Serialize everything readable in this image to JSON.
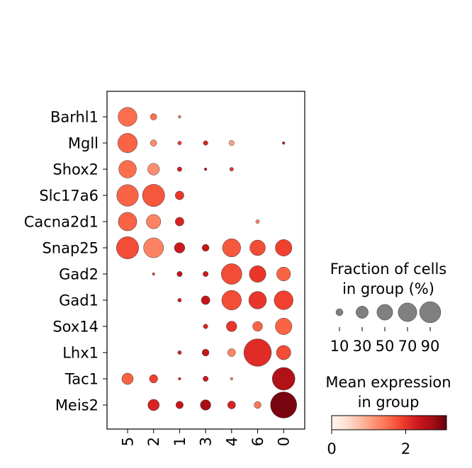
{
  "chart_data": {
    "type": "dotplot",
    "genes": [
      "Barhl1",
      "Mgll",
      "Shox2",
      "Slc17a6",
      "Cacna2d1",
      "Snap25",
      "Gad2",
      "Gad1",
      "Sox14",
      "Lhx1",
      "Tac1",
      "Meis2"
    ],
    "groups": [
      "5",
      "2",
      "1",
      "3",
      "4",
      "6",
      "0"
    ],
    "fraction_pct": [
      [
        52,
        6,
        1,
        0,
        0,
        0,
        0
      ],
      [
        55,
        6,
        2,
        3,
        4,
        0,
        1
      ],
      [
        45,
        20,
        3,
        1,
        2,
        0,
        0
      ],
      [
        68,
        72,
        11,
        0,
        0,
        0,
        0
      ],
      [
        50,
        30,
        11,
        0,
        0,
        2,
        0
      ],
      [
        72,
        58,
        16,
        7,
        48,
        35,
        40
      ],
      [
        0,
        1,
        4,
        4,
        62,
        40,
        28
      ],
      [
        0,
        0,
        2,
        11,
        56,
        45,
        52
      ],
      [
        0,
        0,
        0,
        3,
        16,
        14,
        40
      ],
      [
        0,
        0,
        2,
        7,
        9,
        110,
        30
      ],
      [
        19,
        10,
        1,
        4,
        1,
        0,
        75
      ],
      [
        0,
        19,
        8,
        16,
        9,
        7,
        100
      ]
    ],
    "mean_expr": [
      [
        1.5,
        1.5,
        1.5,
        0,
        0,
        0,
        0
      ],
      [
        1.6,
        1.2,
        1.9,
        2.2,
        1.0,
        0,
        2.3
      ],
      [
        1.5,
        1.2,
        2.2,
        2.5,
        2.0,
        0,
        1.5
      ],
      [
        1.6,
        1.7,
        2.0,
        1.0,
        1.0,
        0,
        1.0
      ],
      [
        1.6,
        1.3,
        2.2,
        2.3,
        2.0,
        1.3,
        1.0
      ],
      [
        1.8,
        1.3,
        2.3,
        2.4,
        1.7,
        1.8,
        1.9
      ],
      [
        1.0,
        1.8,
        2.4,
        2.3,
        1.8,
        2.0,
        1.6
      ],
      [
        0,
        1.5,
        2.2,
        2.4,
        1.8,
        2.0,
        1.9
      ],
      [
        0,
        1.5,
        2.0,
        2.2,
        2.0,
        1.6,
        1.6
      ],
      [
        0,
        1.5,
        2.2,
        2.4,
        1.3,
        2.1,
        1.8
      ],
      [
        1.6,
        1.9,
        2.1,
        2.3,
        1.2,
        1.5,
        2.6
      ],
      [
        2.2,
        2.2,
        2.4,
        2.7,
        2.2,
        1.4,
        3.0
      ]
    ],
    "size_legend": {
      "title_line1": "Fraction of cells",
      "title_line2": "in group (%)",
      "values": [
        10,
        30,
        50,
        70,
        90
      ],
      "labels": [
        "10",
        "30",
        "50",
        "70",
        "90"
      ],
      "color": "#808080"
    },
    "color_legend": {
      "title_line1": "Mean expression",
      "title_line2": "in group",
      "range": [
        0,
        3.1
      ],
      "ticks": [
        0,
        2
      ],
      "tick_labels": [
        "0",
        "2"
      ],
      "colormap": "Reds"
    }
  }
}
